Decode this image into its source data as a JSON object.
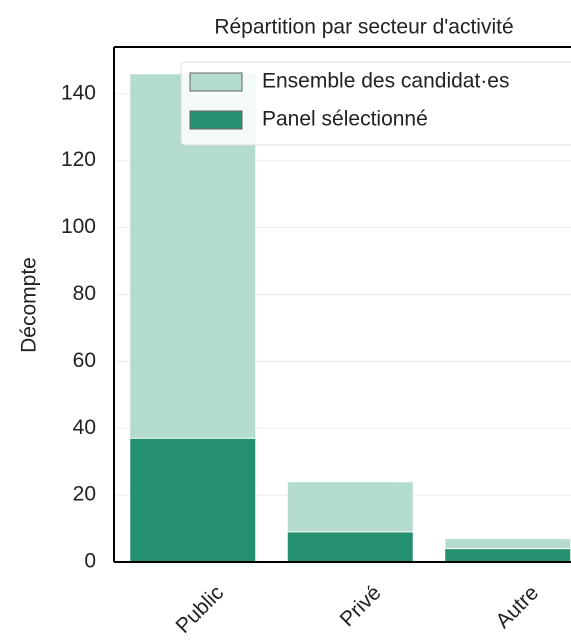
{
  "chart_data": {
    "type": "bar",
    "title": "Répartition par secteur d'activité",
    "y_label": "Décompte",
    "categories": [
      "Public",
      "Privé",
      "Autre"
    ],
    "series": [
      {
        "name": "Ensemble des candidat·es",
        "color": "#b3dbd0",
        "values": [
          146,
          24,
          7
        ]
      },
      {
        "name": "Panel sélectionné",
        "color": "#25906f",
        "values": [
          37,
          9,
          4
        ]
      }
    ],
    "ylim": [
      0,
      154
    ],
    "yticks": [
      0,
      20,
      40,
      60,
      80,
      100,
      120,
      140
    ],
    "grid": true,
    "legend": "upper right"
  }
}
